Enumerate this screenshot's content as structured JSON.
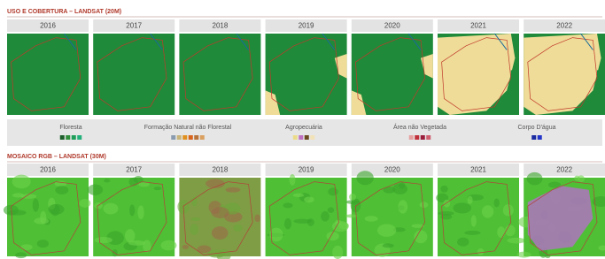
{
  "sections": [
    {
      "title": "USO E COBERTURA – LANDSAT (20M)",
      "years": [
        "2016",
        "2017",
        "2018",
        "2019",
        "2020",
        "2021",
        "2022"
      ]
    },
    {
      "title": "MOSAICO RGB – LANDSAT (30M)",
      "years": [
        "2016",
        "2017",
        "2018",
        "2019",
        "2020",
        "2021",
        "2022"
      ]
    }
  ],
  "legend": {
    "items": [
      {
        "label": "Floresta",
        "colors": [
          "#1d5e2a",
          "#2f8f3a",
          "#1f9e5a",
          "#23b07a"
        ]
      },
      {
        "label": "Formação Natural não Florestal",
        "colors": [
          "#8a9bb0",
          "#c8b47a",
          "#e0901e",
          "#d9651c",
          "#b8733a",
          "#d9a060"
        ]
      },
      {
        "label": "Agropecuária",
        "colors": [
          "#ecdc8a",
          "#c070c0",
          "#6a4a20",
          "#f2e2b8"
        ]
      },
      {
        "label": "Área não Vegetada",
        "colors": [
          "#e6a0a0",
          "#c0303a",
          "#9a1f3c",
          "#d06070"
        ]
      },
      {
        "label": "Corpo D'água",
        "colors": [
          "#1a2aa0",
          "#2436c8"
        ]
      }
    ]
  }
}
